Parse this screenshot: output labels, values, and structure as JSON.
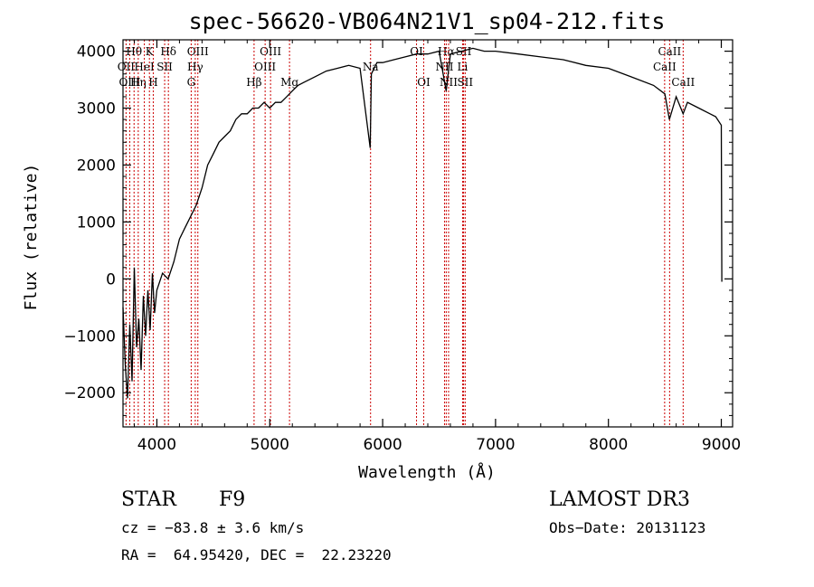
{
  "chart_data": {
    "type": "line",
    "title": "spec-56620-VB064N21V1_sp04-212.fits",
    "xlabel": "Wavelength (Å)",
    "ylabel": "Flux (relative)",
    "xlim": [
      3700,
      9100
    ],
    "ylim": [
      -2600,
      4200
    ],
    "x_ticks": [
      4000,
      5000,
      6000,
      7000,
      8000,
      9000
    ],
    "x_tick_labels": [
      "4000",
      "5000",
      "6000",
      "7000",
      "8000",
      "9000"
    ],
    "y_ticks": [
      -2000,
      -1000,
      0,
      1000,
      2000,
      3000,
      4000
    ],
    "y_tick_labels": [
      "−2000",
      "−1000",
      "0",
      "1000",
      "2000",
      "3000",
      "4000"
    ],
    "series": [
      {
        "name": "spectrum",
        "x": [
          3700,
          3720,
          3740,
          3760,
          3780,
          3800,
          3820,
          3840,
          3860,
          3880,
          3900,
          3920,
          3940,
          3960,
          3980,
          4000,
          4050,
          4100,
          4150,
          4200,
          4250,
          4300,
          4350,
          4400,
          4450,
          4500,
          4550,
          4600,
          4650,
          4700,
          4750,
          4800,
          4850,
          4900,
          4950,
          5000,
          5050,
          5100,
          5150,
          5200,
          5250,
          5300,
          5400,
          5500,
          5600,
          5700,
          5800,
          5890,
          5900,
          5950,
          6000,
          6100,
          6200,
          6300,
          6400,
          6500,
          6563,
          6600,
          6700,
          6800,
          6900,
          7000,
          7200,
          7400,
          7600,
          7800,
          8000,
          8200,
          8400,
          8500,
          8540,
          8600,
          8662,
          8700,
          8800,
          8900,
          8950,
          9000,
          9005
        ],
        "values": [
          -500,
          -1500,
          -2100,
          -800,
          -1800,
          200,
          -1200,
          -700,
          -1600,
          -300,
          -1000,
          -200,
          -900,
          100,
          -600,
          -200,
          100,
          0,
          300,
          700,
          900,
          1100,
          1300,
          1600,
          2000,
          2200,
          2400,
          2500,
          2600,
          2800,
          2900,
          2900,
          3000,
          3000,
          3100,
          3000,
          3100,
          3100,
          3200,
          3300,
          3400,
          3450,
          3550,
          3650,
          3700,
          3750,
          3700,
          2300,
          3600,
          3800,
          3800,
          3850,
          3900,
          3950,
          3950,
          4000,
          3300,
          3950,
          4000,
          4050,
          4000,
          4000,
          3950,
          3900,
          3850,
          3750,
          3700,
          3550,
          3400,
          3250,
          2800,
          3200,
          2900,
          3100,
          3000,
          2900,
          2850,
          2700,
          -50
        ]
      }
    ],
    "line_markers": [
      {
        "label": "Hθ",
        "wavelength": 3798,
        "row": 1
      },
      {
        "label": "OII",
        "wavelength": 3727,
        "row": 2
      },
      {
        "label": "OIII",
        "wavelength": 3760,
        "row": 3
      },
      {
        "label": "Hη",
        "wavelength": 3835,
        "row": 3
      },
      {
        "label": "HeI",
        "wavelength": 3889,
        "row": 2
      },
      {
        "label": "K",
        "wavelength": 3934,
        "row": 1
      },
      {
        "label": "H",
        "wavelength": 3968,
        "row": 3
      },
      {
        "label": "SII",
        "wavelength": 4069,
        "row": 2
      },
      {
        "label": "Hδ",
        "wavelength": 4102,
        "row": 1
      },
      {
        "label": "OIII",
        "wavelength": 4363,
        "row": 1
      },
      {
        "label": "Hγ",
        "wavelength": 4340,
        "row": 2
      },
      {
        "label": "G",
        "wavelength": 4304,
        "row": 3
      },
      {
        "label": "Hβ",
        "wavelength": 4861,
        "row": 3
      },
      {
        "label": "OIII",
        "wavelength": 5007,
        "row": 1
      },
      {
        "label": "OIII",
        "wavelength": 4959,
        "row": 2
      },
      {
        "label": "Mg",
        "wavelength": 5175,
        "row": 3
      },
      {
        "label": "Na",
        "wavelength": 5893,
        "row": 2
      },
      {
        "label": "OI",
        "wavelength": 6300,
        "row": 1
      },
      {
        "label": "OI",
        "wavelength": 6364,
        "row": 3
      },
      {
        "label": "Hα",
        "wavelength": 6563,
        "row": 1
      },
      {
        "label": "NII",
        "wavelength": 6548,
        "row": 2
      },
      {
        "label": "NII",
        "wavelength": 6584,
        "row": 3
      },
      {
        "label": "SII",
        "wavelength": 6717,
        "row": 1
      },
      {
        "label": "Li",
        "wavelength": 6708,
        "row": 2
      },
      {
        "label": "SII",
        "wavelength": 6731,
        "row": 3
      },
      {
        "label": "CaII",
        "wavelength": 8542,
        "row": 1
      },
      {
        "label": "CaII",
        "wavelength": 8498,
        "row": 2
      },
      {
        "label": "CaII",
        "wavelength": 8662,
        "row": 3
      }
    ]
  },
  "info": {
    "object_class": "STAR",
    "subclass": "F9",
    "survey": "LAMOST DR3",
    "redshift_line": "cz = −83.8 ± 3.6 km/s",
    "obs_date_line": "Obs−Date: 20131123",
    "coords_line": "RA =  64.95420, DEC =  22.23220"
  }
}
